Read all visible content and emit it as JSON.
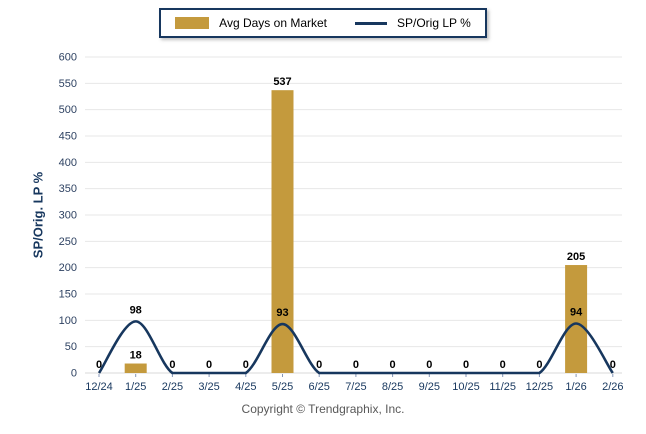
{
  "legend": {
    "bar_label": "Avg Days on Market",
    "line_label": "SP/Orig LP %"
  },
  "y_axis_title": "SP/Orig. LP %",
  "footer": "Copyright © Trendgraphix, Inc.",
  "colors": {
    "bar": "#C49A3D",
    "line": "#17375E",
    "axis_text": "#2E4262",
    "grid": "#E7E7E7",
    "baseline": "#D9D9D9",
    "tick": "#8496B8",
    "data_label": "#000000",
    "footer_text": "#595959"
  },
  "chart_data": {
    "type": "bar",
    "subtype": "bar+line combo",
    "categories": [
      "12/24",
      "1/25",
      "2/25",
      "3/25",
      "4/25",
      "5/25",
      "6/25",
      "7/25",
      "8/25",
      "9/25",
      "10/25",
      "11/25",
      "12/25",
      "1/26",
      "2/26"
    ],
    "series": [
      {
        "name": "Avg Days on Market",
        "type": "bar",
        "values": [
          0,
          18,
          0,
          0,
          0,
          537,
          0,
          0,
          0,
          0,
          0,
          0,
          0,
          205,
          0
        ]
      },
      {
        "name": "SP/Orig LP %",
        "type": "line",
        "values": [
          0,
          98,
          0,
          0,
          0,
          93,
          0,
          0,
          0,
          0,
          0,
          0,
          0,
          94,
          0
        ]
      }
    ],
    "title": "",
    "xlabel": "",
    "ylabel": "SP/Orig. LP %",
    "ylim": [
      0,
      600
    ],
    "ytick_step": 50,
    "grid": true,
    "legend_position": "top",
    "data_labels": true
  }
}
